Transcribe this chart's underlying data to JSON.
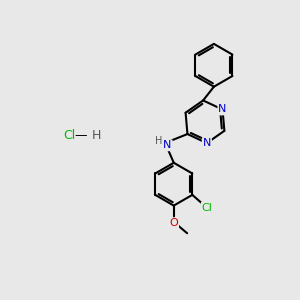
{
  "background_color": "#e8e8e8",
  "bond_color": "#000000",
  "bond_width": 1.5,
  "N_color": "#0000cc",
  "O_color": "#cc0000",
  "Cl_color": "#00bb00",
  "H_color": "#555555",
  "font_size": 8,
  "fig_width": 3.0,
  "fig_height": 3.0,
  "dpi": 100,
  "xlim": [
    0,
    10
  ],
  "ylim": [
    0,
    10
  ]
}
